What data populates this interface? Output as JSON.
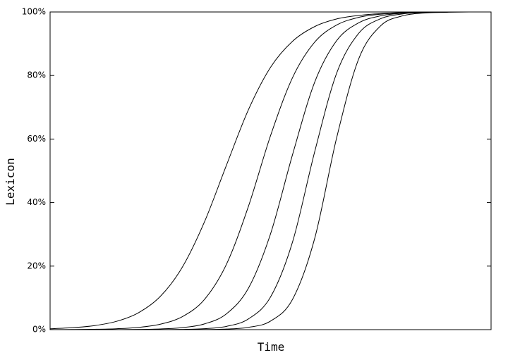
{
  "chart_data": {
    "type": "line",
    "xlabel": "Time",
    "ylabel": "Lexicon",
    "x": [
      0,
      5,
      10,
      15,
      20,
      25,
      30,
      35,
      40,
      45,
      50,
      55,
      60,
      65,
      70,
      75,
      80,
      85,
      90,
      95,
      100
    ],
    "xlim": [
      0,
      100
    ],
    "ylim": [
      0,
      100
    ],
    "yticks": [
      {
        "value": 0,
        "label": "0%"
      },
      {
        "value": 20,
        "label": "20%"
      },
      {
        "value": 40,
        "label": "40%"
      },
      {
        "value": 60,
        "label": "60%"
      },
      {
        "value": 80,
        "label": "80%"
      },
      {
        "value": 100,
        "label": "100%"
      }
    ],
    "grid": false,
    "series": [
      {
        "color": "#000000",
        "values": [
          0.29,
          0.6,
          1.25,
          2.59,
          5.29,
          10.47,
          19.7,
          33.9,
          51.8,
          69.3,
          82.6,
          90.8,
          95.4,
          97.8,
          98.9,
          99.5,
          99.8,
          99.9,
          100,
          100,
          100
        ]
      },
      {
        "color": "#000000",
        "values": [
          0.02,
          0.05,
          0.12,
          0.29,
          0.7,
          1.71,
          4.1,
          9.5,
          20.6,
          38.9,
          61.1,
          79.4,
          90.5,
          95.9,
          98.3,
          99.3,
          99.7,
          99.9,
          100,
          100,
          100
        ]
      },
      {
        "color": "#000000",
        "values": [
          0,
          0,
          0.01,
          0.03,
          0.08,
          0.23,
          0.64,
          1.8,
          5.0,
          13.1,
          30.2,
          55.2,
          77.9,
          91.0,
          96.6,
          98.8,
          99.6,
          99.9,
          100,
          100,
          100
        ]
      },
      {
        "color": "#000000",
        "values": [
          0,
          0,
          0,
          0,
          0.01,
          0.03,
          0.09,
          0.31,
          1.03,
          3.4,
          10.3,
          27.7,
          56.0,
          80.8,
          93.3,
          97.9,
          99.4,
          99.8,
          100,
          100,
          100
        ]
      },
      {
        "color": "#000000",
        "values": [
          0,
          0,
          0,
          0,
          0,
          0,
          0,
          0.05,
          0.19,
          0.73,
          2.7,
          9.6,
          28.7,
          60.5,
          85.3,
          95.7,
          98.8,
          99.7,
          99.9,
          100,
          100
        ]
      }
    ]
  }
}
